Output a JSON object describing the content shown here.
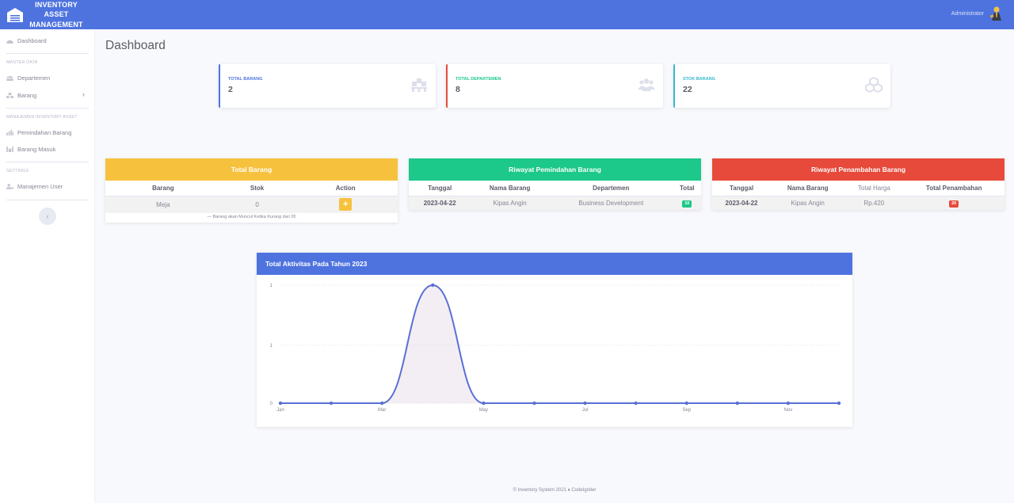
{
  "brand": {
    "lines": [
      "INVENTORY",
      "ASSET",
      "MANAGEMENT"
    ],
    "icon": "warehouse-icon"
  },
  "topbar": {
    "user_name": "Administrator",
    "avatar_icon": "user-avatar-icon",
    "bg_color": "#4e73df"
  },
  "sidebar": {
    "dashboard": {
      "label": "Dashboard",
      "icon": "dashboard-icon"
    },
    "heading_master": "MASTER DATA",
    "departemen": {
      "label": "Departemen",
      "icon": "users-icon"
    },
    "barang": {
      "label": "Barang",
      "icon": "boxes-icon"
    },
    "heading_inventory": "MANAJEMEN INVENTORY ASSET",
    "pemindahan": {
      "label": "Pemindahan Barang",
      "icon": "chart-icon"
    },
    "barang_masuk": {
      "label": "Barang Masuk",
      "icon": "inbox-icon"
    },
    "heading_settings": "SETTINGS",
    "manajemen_user": {
      "label": "Manajemen User",
      "icon": "user-cog-icon"
    },
    "toggle": "‹"
  },
  "page": {
    "title": "Dashboard"
  },
  "stats": [
    {
      "label": "TOTAL BARANG",
      "value": "2",
      "color": "#4e73df",
      "icon": "pallet-icon"
    },
    {
      "label": "TOTAL DEPARTEMEN",
      "value": "8",
      "color": "#1cc88a",
      "accent": "#e74a3b",
      "icon": "users-icon"
    },
    {
      "label": "STOK BARANG",
      "value": "22",
      "color": "#36b9cc",
      "icon": "cubes-icon"
    }
  ],
  "panels": {
    "total_barang": {
      "title": "Total Barang",
      "color": "#f6c23e",
      "columns": [
        "Barang",
        "Stok",
        "Action"
      ],
      "rows": [
        {
          "barang": "Meja",
          "stok": "0",
          "action": "+"
        }
      ],
      "note": "— Barang akan Muncul Ketika Kurang dari 20"
    },
    "pemindahan": {
      "title": "Riwayat Pemindahan Barang",
      "color": "#1cc88a",
      "columns": [
        "Tanggal",
        "Nama Barang",
        "Departemen",
        "Total"
      ],
      "rows": [
        {
          "tanggal": "2023-04-22",
          "nama": "Kipas Angin",
          "departemen": "Business Development",
          "total": "10"
        }
      ]
    },
    "penambahan": {
      "title": "Riwayat Penambahan Barang",
      "color": "#e74a3b",
      "columns": [
        "Tanggal",
        "Nama Barang",
        "Total Harga",
        "Total Penambahan"
      ],
      "rows": [
        {
          "tanggal": "2023-04-22",
          "nama": "Kipas Angin",
          "harga": "Rp.420",
          "total": "20"
        }
      ]
    }
  },
  "chart_data": {
    "type": "area",
    "title": "Total Aktivitas Pada Tahun 2023",
    "x": [
      "Jan",
      "Feb",
      "Mar",
      "Apr",
      "May",
      "Jun",
      "Jul",
      "Aug",
      "Sep",
      "Oct",
      "Nov",
      "Dec"
    ],
    "x_tick_labels": [
      "Jan",
      "Mar",
      "May",
      "Jul",
      "Sep",
      "Nov"
    ],
    "values": [
      0,
      0,
      0,
      1,
      0,
      0,
      0,
      0,
      0,
      0,
      0,
      0
    ],
    "y_tick_labels": [
      "0",
      "1",
      "1"
    ],
    "ylim": [
      0,
      1
    ],
    "grid": true,
    "line_color": "#5a6fd6",
    "fill_color": "rgba(190,160,190,0.18)"
  },
  "footer": "© Inventory System 2021 ♦ CodeIgniter"
}
